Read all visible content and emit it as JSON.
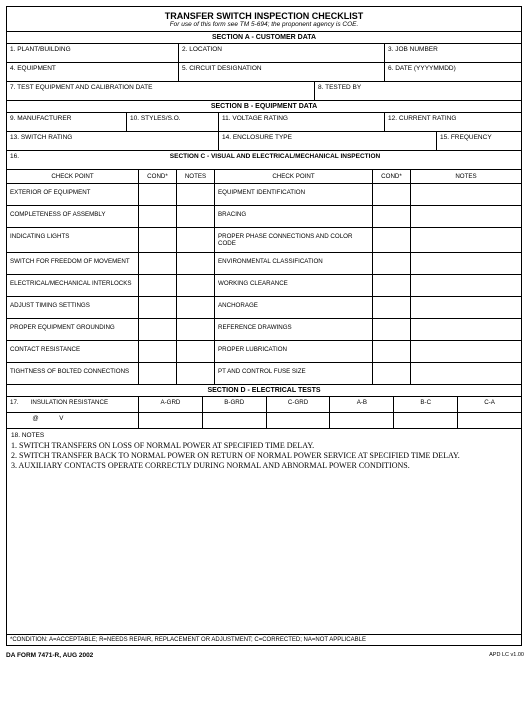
{
  "title": "TRANSFER SWITCH INSPECTION CHECKLIST",
  "subtitle": "For use of this form see TM 5-694; the proponent agency is COE.",
  "sectionA": {
    "header": "SECTION A - CUSTOMER DATA",
    "f1": "1.  PLANT/BUILDING",
    "f2": "2.  LOCATION",
    "f3": "3. JOB NUMBER",
    "f4": "4.  EQUIPMENT",
    "f5": "5.  CIRCUIT DESIGNATION",
    "f6": "6. DATE (YYYYMMDD)",
    "f7": "7.  TEST EQUIPMENT AND CALIBRATION DATE",
    "f8": "8. TESTED BY"
  },
  "sectionB": {
    "header": "SECTION B - EQUIPMENT DATA",
    "f9": "9.  MANUFACTURER",
    "f10": "10.  STYLES/S.O.",
    "f11": "11.  VOLTAGE RATING",
    "f12": "12.  CURRENT RATING",
    "f13": "13.  SWITCH RATING",
    "f14": "14.  ENCLOSURE TYPE",
    "f15": "15.  FREQUENCY"
  },
  "sectionC": {
    "prefix": "16.",
    "header": "SECTION C - VISUAL AND ELECTRICAL/MECHANICAL INSPECTION",
    "colCheckPoint": "CHECK POINT",
    "colCond": "COND*",
    "colNotes": "NOTES",
    "rows": [
      {
        "l": "EXTERIOR OF EQUIPMENT",
        "r": "EQUIPMENT IDENTIFICATION"
      },
      {
        "l": "COMPLETENESS OF ASSEMBLY",
        "r": "BRACING"
      },
      {
        "l": "INDICATING LIGHTS",
        "r": "PROPER PHASE CONNECTIONS AND COLOR CODE"
      },
      {
        "l": "SWITCH FOR FREEDOM OF MOVEMENT",
        "r": "ENVIRONMENTAL CLASSIFICATION"
      },
      {
        "l": "ELECTRICAL/MECHANICAL INTERLOCKS",
        "r": "WORKING CLEARANCE"
      },
      {
        "l": "ADJUST TIMING SETTINGS",
        "r": "ANCHORAGE"
      },
      {
        "l": "PROPER EQUIPMENT GROUNDING",
        "r": "REFERENCE DRAWINGS"
      },
      {
        "l": "CONTACT RESISTANCE",
        "r": "PROPER LUBRICATION"
      },
      {
        "l": "TIGHTNESS OF BOLTED CONNECTIONS",
        "r": "PT AND CONTROL FUSE SIZE"
      }
    ]
  },
  "sectionD": {
    "header": "SECTION D - ELECTRICAL TESTS",
    "f17label": "17.       INSULATION RESISTANCE",
    "f17sub": "             @            V",
    "cols": [
      "A-GRD",
      "B-GRD",
      "C-GRD",
      "A-B",
      "B-C",
      "C-A"
    ]
  },
  "notes": {
    "f18": "18.  NOTES",
    "lines": [
      "1. SWITCH TRANSFERS ON LOSS OF NORMAL POWER AT SPECIFIED TIME DELAY.",
      "2.  SWITCH TRANSFER BACK TO NORMAL POWER ON RETURN OF NORMAL POWER SERVICE AT SPECIFIED TIME DELAY.",
      "3.  AUXILIARY CONTACTS OPERATE CORRECTLY DURING NORMAL AND ABNORMAL POWER CONDITIONS."
    ]
  },
  "footerCond": "*CONDITION: A=ACCEPTABLE; R=NEEDS REPAIR, REPLACEMENT OR ADJUSTMENT; C=CORRECTED; NA=NOT APPLICABLE",
  "formId": "DA FORM 7471-R, AUG 2002",
  "apd": "APD LC v1.00"
}
